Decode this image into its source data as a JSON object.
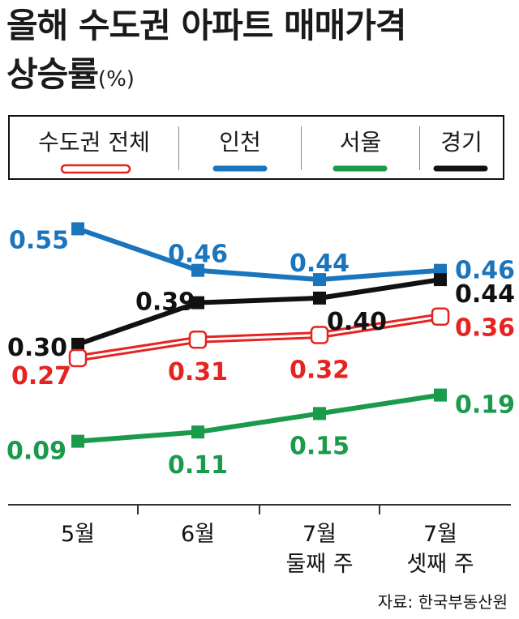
{
  "title_line1": "올해 수도권 아파트 매매가격",
  "title_line2": "상승률",
  "title_unit": "(%)",
  "source": "자료: 한국부동산원",
  "colors": {
    "metro": "#e52421",
    "incheon": "#1b75bc",
    "seoul": "#1a9a4b",
    "gyeonggi": "#111111"
  },
  "chart_data": {
    "type": "line",
    "categories": [
      {
        "line1": "5월",
        "line2": ""
      },
      {
        "line1": "6월",
        "line2": ""
      },
      {
        "line1": "7월",
        "line2": "둘째 주"
      },
      {
        "line1": "7월",
        "line2": "셋째 주"
      }
    ],
    "series": [
      {
        "key": "metro",
        "name": "수도권 전체",
        "values": [
          0.27,
          0.31,
          0.32,
          0.36
        ]
      },
      {
        "key": "incheon",
        "name": "인천",
        "values": [
          0.55,
          0.46,
          0.44,
          0.46
        ]
      },
      {
        "key": "seoul",
        "name": "서울",
        "values": [
          0.09,
          0.11,
          0.15,
          0.19
        ]
      },
      {
        "key": "gyeonggi",
        "name": "경기",
        "values": [
          0.3,
          0.39,
          0.4,
          0.44
        ]
      }
    ],
    "value_labels": {
      "metro": [
        "0.27",
        "0.31",
        "0.32",
        "0.36"
      ],
      "incheon": [
        "0.55",
        "0.46",
        "0.44",
        "0.46"
      ],
      "seoul": [
        "0.09",
        "0.11",
        "0.15",
        "0.19"
      ],
      "gyeonggi": [
        "0.30",
        "0.39",
        "0.40",
        "0.44"
      ]
    },
    "legend_position": "top",
    "grid": false
  }
}
